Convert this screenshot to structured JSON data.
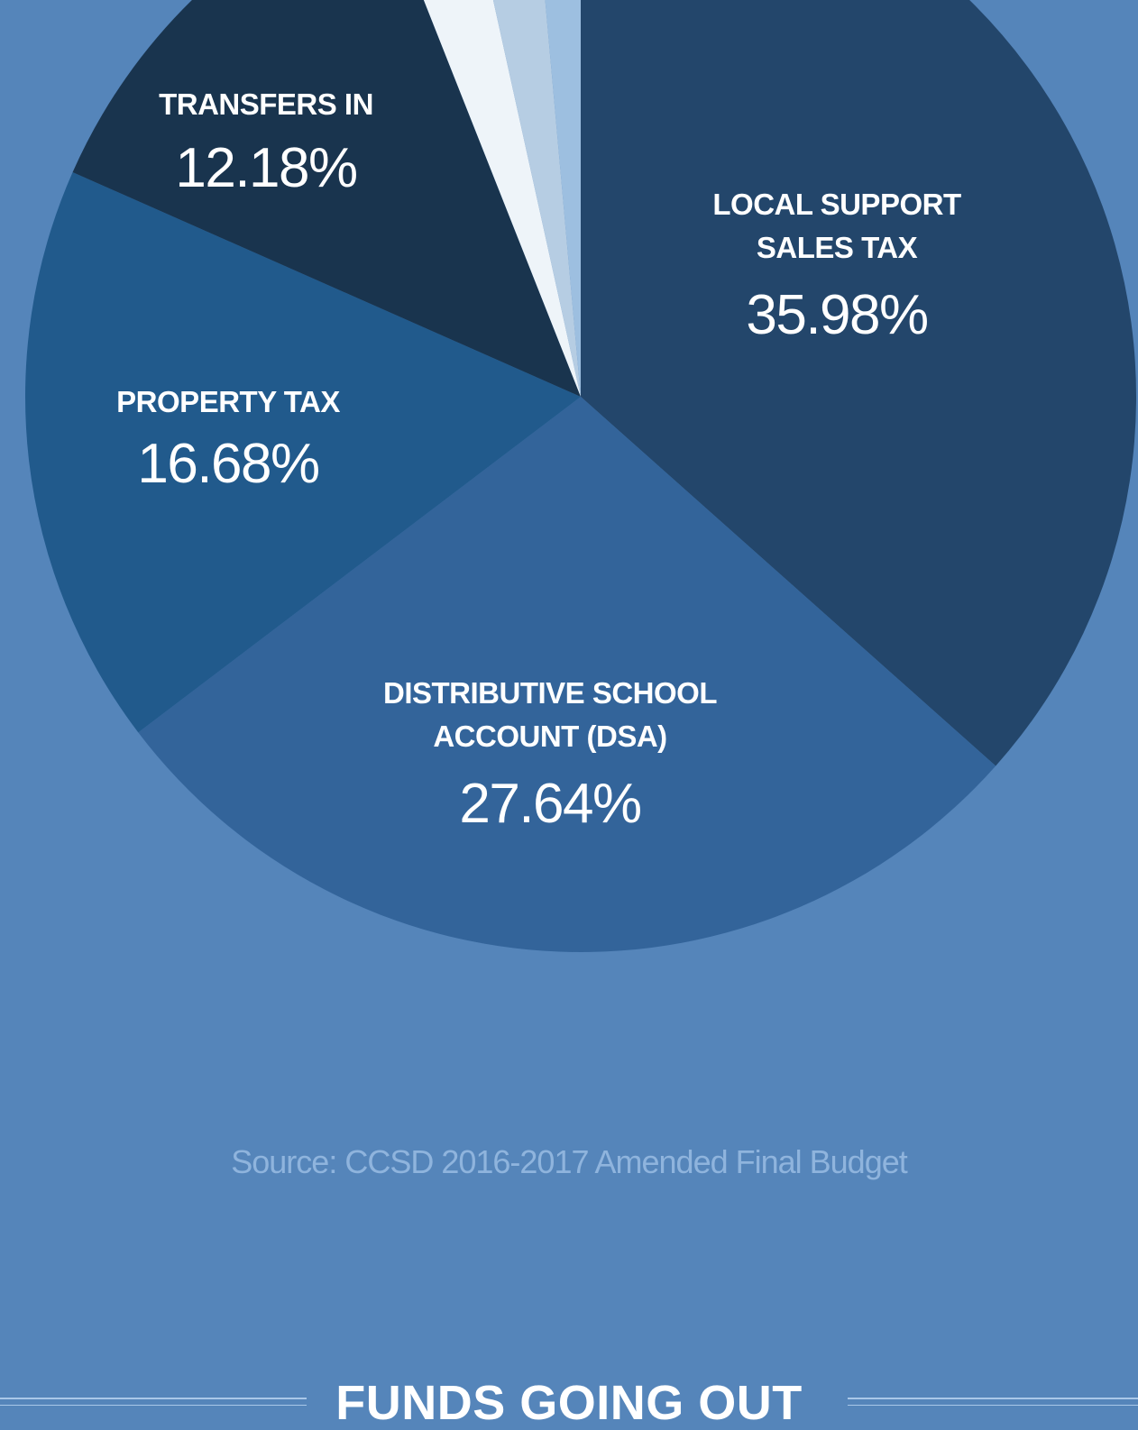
{
  "chart_data": {
    "type": "pie",
    "slices": [
      {
        "label": "LOCAL SUPPORT\nSALES TAX",
        "value": 35.98,
        "value_label": "35.98%",
        "color": "#23466b"
      },
      {
        "label": "DISTRIBUTIVE SCHOOL\nACCOUNT (DSA)",
        "value": 27.64,
        "value_label": "27.64%",
        "color": "#33649a"
      },
      {
        "label": "PROPERTY TAX",
        "value": 16.68,
        "value_label": "16.68%",
        "color": "#215a8c"
      },
      {
        "label": "TRANSFERS IN",
        "value": 12.18,
        "value_label": "12.18%",
        "color": "#19344e"
      },
      {
        "label": "",
        "value": 2.5,
        "value_label": "",
        "color": "#eef4f9"
      },
      {
        "label": "",
        "value": 2.0,
        "value_label": "",
        "color": "#b6cde3"
      },
      {
        "label": "",
        "value": 1.4,
        "value_label": "",
        "color": "#9dbfe0"
      }
    ],
    "start": "top, clockwise",
    "background": "#5585ba"
  },
  "source": "Source:  CCSD 2016-2017 Amended Final Budget",
  "footer": {
    "title": "FUNDS GOING OUT"
  }
}
